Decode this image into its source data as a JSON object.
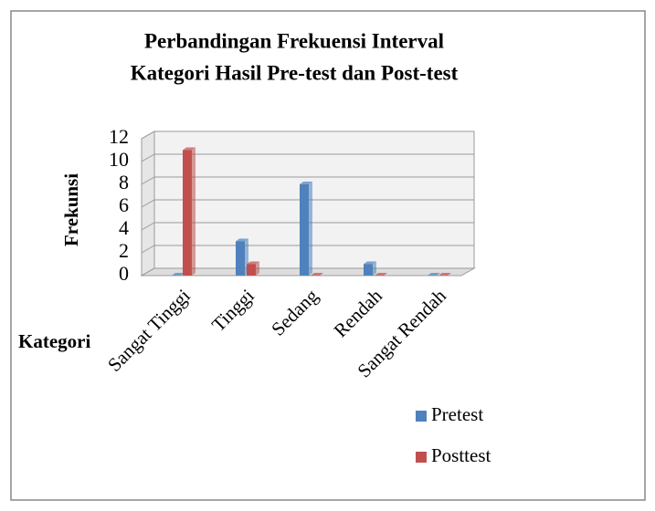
{
  "chart_data": {
    "type": "bar",
    "title": [
      "Perbandingan  Frekuensi Interval",
      "Kategori Hasil Pre-test dan Post-test"
    ],
    "x_label": "Kategori",
    "y_label": "Frekunsi",
    "categories": [
      "Sangat Tinggi",
      "Tinggi",
      "Sedang",
      "Rendah",
      "Sangat Rendah"
    ],
    "series": [
      {
        "name": "Pretest",
        "color": "#4f81bd",
        "values": [
          0,
          3,
          8,
          1,
          0
        ]
      },
      {
        "name": "Posttest",
        "color": "#c0504d",
        "values": [
          11,
          1,
          0,
          0,
          0
        ]
      }
    ],
    "ylim": [
      0,
      12
    ],
    "yticks": [
      0,
      2,
      4,
      6,
      8,
      10,
      12
    ],
    "grid": true,
    "legend": "bottom-right"
  }
}
